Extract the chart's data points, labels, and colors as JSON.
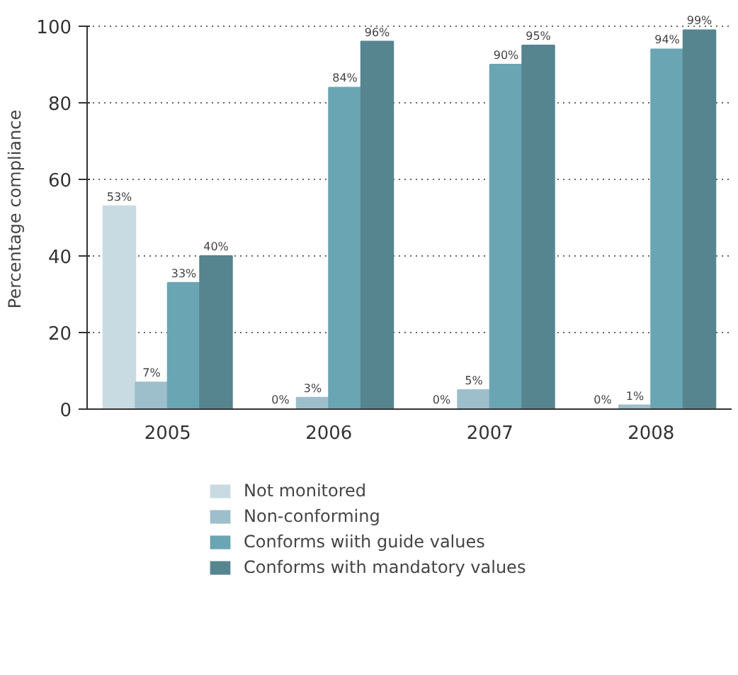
{
  "chart_data": {
    "type": "bar",
    "ylabel": "Percentage compliance",
    "categories": [
      "2005",
      "2006",
      "2007",
      "2008"
    ],
    "series": [
      {
        "name": "Not monitored",
        "color": "#c8dbe2",
        "values": [
          53,
          0,
          0,
          0
        ],
        "value_labels": [
          "53%",
          "0%",
          "0%",
          "0%"
        ]
      },
      {
        "name": "Non-conforming",
        "color": "#9dbfcb",
        "values": [
          7,
          3,
          5,
          1
        ],
        "value_labels": [
          "7%",
          "3%",
          "5%",
          "1%"
        ]
      },
      {
        "name": "Conforms wiith guide values",
        "color": "#6aa5b3",
        "values": [
          33,
          84,
          90,
          94
        ],
        "value_labels": [
          "33%",
          "84%",
          "90%",
          "94%"
        ]
      },
      {
        "name": "Conforms with mandatory values",
        "color": "#568590",
        "values": [
          40,
          96,
          95,
          99
        ],
        "value_labels": [
          "40%",
          "96%",
          "95%",
          "99%"
        ]
      }
    ],
    "ylim": [
      0,
      100
    ],
    "yticks": [
      0,
      20,
      40,
      60,
      80,
      100
    ],
    "grid": "y",
    "legend": "bottom"
  }
}
